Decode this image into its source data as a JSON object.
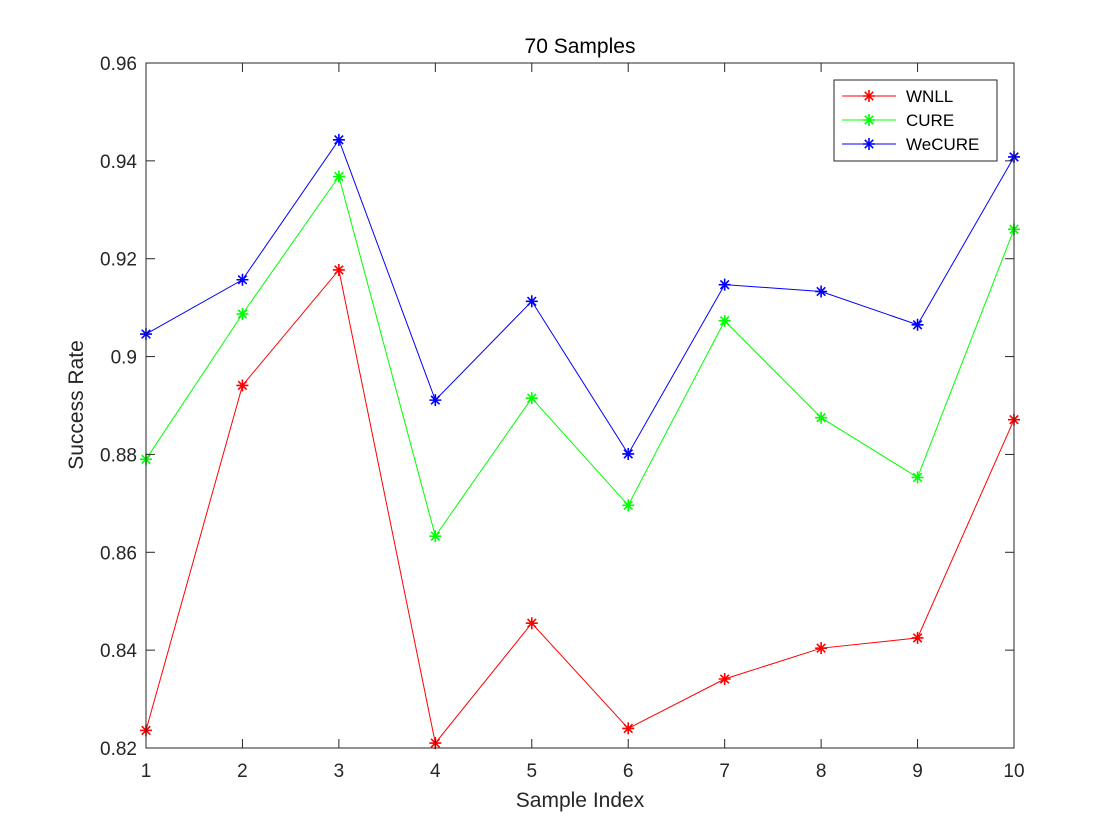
{
  "chart_data": {
    "type": "line",
    "title": "70 Samples",
    "xlabel": "Sample Index",
    "ylabel": "Success Rate",
    "x": [
      1,
      2,
      3,
      4,
      5,
      6,
      7,
      8,
      9,
      10
    ],
    "xlim": [
      1,
      10
    ],
    "ylim": [
      0.82,
      0.96
    ],
    "x_ticks": [
      "1",
      "2",
      "3",
      "4",
      "5",
      "6",
      "7",
      "8",
      "9",
      "10"
    ],
    "y_ticks": [
      "0.82",
      "0.84",
      "0.86",
      "0.88",
      "0.9",
      "0.92",
      "0.94",
      "0.96"
    ],
    "grid": false,
    "legend_position": "top-right",
    "marker": "asterisk",
    "series": [
      {
        "name": "WNLL",
        "color": "#ff0000",
        "values": [
          0.8236,
          0.8941,
          0.9177,
          0.821,
          0.8455,
          0.824,
          0.8341,
          0.8404,
          0.8425,
          0.8871
        ]
      },
      {
        "name": "CURE",
        "color": "#00ff00",
        "values": [
          0.879,
          0.9087,
          0.9368,
          0.8633,
          0.8915,
          0.8696,
          0.9073,
          0.8875,
          0.8753,
          0.926
        ]
      },
      {
        "name": "WeCURE",
        "color": "#0000ff",
        "values": [
          0.9046,
          0.9157,
          0.9443,
          0.8911,
          0.9113,
          0.8801,
          0.9147,
          0.9133,
          0.9065,
          0.9408
        ]
      }
    ]
  }
}
